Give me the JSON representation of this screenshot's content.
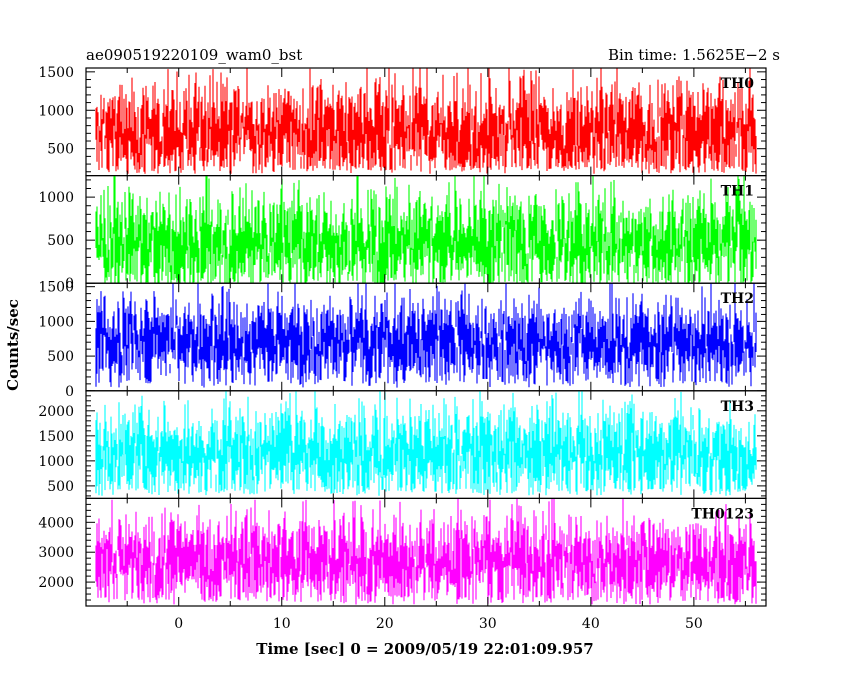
{
  "header": {
    "left_title": "ae090519220109_wam0_bst",
    "right_title": "Bin time: 1.5625E−2 s"
  },
  "chart_data": {
    "type": "line",
    "ylabel": "Counts/sec",
    "xlabel": "Time [sec] 0 = 2009/05/19 22:01:09.957",
    "xlim": [
      -9,
      57
    ],
    "x_range_data": [
      -8,
      56
    ],
    "x_ticks": [
      0,
      10,
      20,
      30,
      40,
      50
    ],
    "grid": false,
    "panels": [
      {
        "name": "TH0",
        "color": "#ff0000",
        "ylim": [
          150,
          1550
        ],
        "ticks": [
          500,
          1000,
          1500
        ],
        "mean": 700,
        "low": 280,
        "high": 1550
      },
      {
        "name": "TH1",
        "color": "#00ff00",
        "ylim": [
          0,
          1250
        ],
        "ticks": [
          0,
          500,
          1000
        ],
        "mean": 480,
        "low": 40,
        "high": 1250
      },
      {
        "name": "TH2",
        "color": "#0000ff",
        "ylim": [
          0,
          1550
        ],
        "ticks": [
          0,
          500,
          1000,
          1500
        ],
        "mean": 700,
        "low": 150,
        "high": 1550
      },
      {
        "name": "TH3",
        "color": "#00ffff",
        "ylim": [
          250,
          2400
        ],
        "ticks": [
          500,
          1000,
          1500,
          2000
        ],
        "mean": 1150,
        "low": 450,
        "high": 2350
      },
      {
        "name": "TH0123",
        "color": "#ff00ff",
        "ylim": [
          1200,
          4800
        ],
        "ticks": [
          2000,
          3000,
          4000
        ],
        "mean": 2700,
        "low": 1500,
        "high": 4700
      }
    ]
  }
}
